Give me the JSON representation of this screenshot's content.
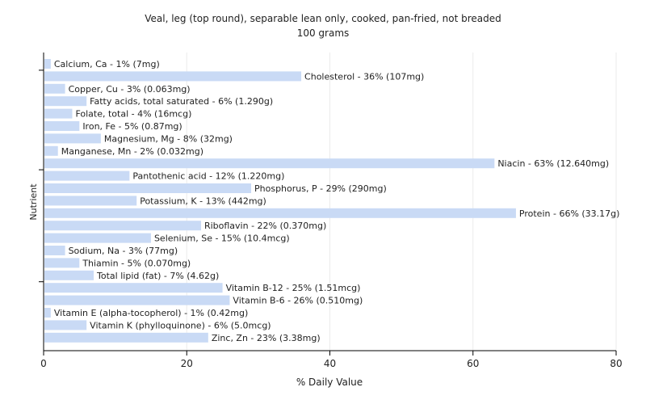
{
  "chart_data": {
    "type": "bar",
    "orientation": "horizontal",
    "title": "Veal, leg (top round), separable lean only, cooked, pan-fried, not breaded",
    "subtitle": "100 grams",
    "xlabel": "% Daily Value",
    "ylabel": "Nutrient",
    "xlim": [
      0,
      80
    ],
    "xticks": [
      0,
      20,
      40,
      60,
      80
    ],
    "grid": true,
    "bar_color": "#c9daf5",
    "categories": [
      "Calcium, Ca",
      "Cholesterol",
      "Copper, Cu",
      "Fatty acids, total saturated",
      "Folate, total",
      "Iron, Fe",
      "Magnesium, Mg",
      "Manganese, Mn",
      "Niacin",
      "Pantothenic acid",
      "Phosphorus, P",
      "Potassium, K",
      "Protein",
      "Riboflavin",
      "Selenium, Se",
      "Sodium, Na",
      "Thiamin",
      "Total lipid (fat)",
      "Vitamin B-12",
      "Vitamin B-6",
      "Vitamin E (alpha-tocopherol)",
      "Vitamin K (phylloquinone)",
      "Zinc, Zn"
    ],
    "values": [
      1,
      36,
      3,
      6,
      4,
      5,
      8,
      2,
      63,
      12,
      29,
      13,
      66,
      22,
      15,
      3,
      5,
      7,
      25,
      26,
      1,
      6,
      23
    ],
    "labels": [
      "Calcium, Ca - 1% (7mg)",
      "Cholesterol - 36% (107mg)",
      "Copper, Cu - 3% (0.063mg)",
      "Fatty acids, total saturated - 6% (1.290g)",
      "Folate, total - 4% (16mcg)",
      "Iron, Fe - 5% (0.87mg)",
      "Magnesium, Mg - 8% (32mg)",
      "Manganese, Mn - 2% (0.032mg)",
      "Niacin - 63% (12.640mg)",
      "Pantothenic acid - 12% (1.220mg)",
      "Phosphorus, P - 29% (290mg)",
      "Potassium, K - 13% (442mg)",
      "Protein - 66% (33.17g)",
      "Riboflavin - 22% (0.370mg)",
      "Selenium, Se - 15% (10.4mcg)",
      "Sodium, Na - 3% (77mg)",
      "Thiamin - 5% (0.070mg)",
      "Total lipid (fat) - 7% (4.62g)",
      "Vitamin B-12 - 25% (1.51mcg)",
      "Vitamin B-6 - 26% (0.510mg)",
      "Vitamin E (alpha-tocopherol) - 1% (0.42mg)",
      "Vitamin K (phylloquinone) - 6% (5.0mcg)",
      "Zinc, Zn - 23% (3.38mg)"
    ]
  }
}
